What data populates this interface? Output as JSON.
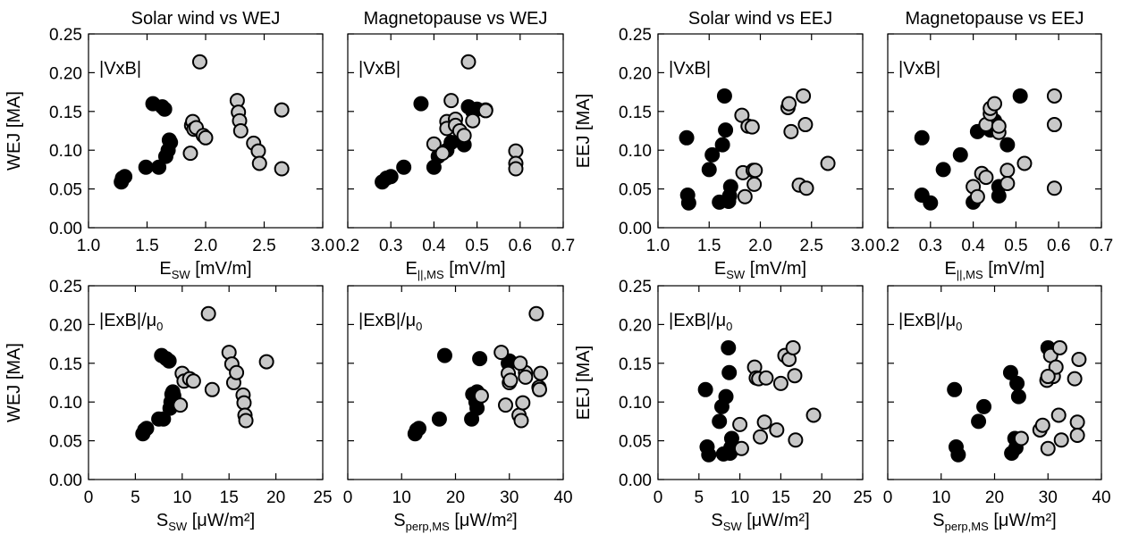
{
  "colors": {
    "solid": "#000000",
    "open": "#c8c8c8"
  },
  "axis_labels": {
    "wej": "WEJ [MA]",
    "eej": "EEJ [MA]",
    "esw": {
      "main": "E",
      "sub": "SW",
      "unit": " [mV/m]"
    },
    "epar": {
      "main": "E",
      "sub": "||,MS",
      "unit": " [mV/m]"
    },
    "ssw": {
      "main": "S",
      "sub": "SW",
      "unit": " [μW/m²]"
    },
    "sperp": {
      "main": "S",
      "sub": "perp,MS",
      "unit": " [μW/m²]"
    }
  },
  "chart_data": [
    {
      "id": "p1",
      "type": "scatter",
      "title": "Solar wind vs WEJ",
      "annotation": "|VxB|",
      "xlabel": "esw",
      "ylabel": "wej",
      "xlim": [
        1.0,
        3.0
      ],
      "ylim": [
        0,
        0.25
      ],
      "xticks": [
        "1.0",
        "1.5",
        "2.0",
        "2.5",
        "3.0"
      ],
      "yticks": [
        "0.00",
        "0.05",
        "0.10",
        "0.15",
        "0.20",
        "0.25"
      ],
      "series": [
        {
          "fill": "solid",
          "x": [
            1.28,
            1.29,
            1.31,
            1.49,
            1.55,
            1.6,
            1.63,
            1.65,
            1.66,
            1.68,
            1.69,
            1.7
          ],
          "y": [
            0.059,
            0.064,
            0.066,
            0.078,
            0.16,
            0.078,
            0.156,
            0.153,
            0.092,
            0.1,
            0.113,
            0.11
          ]
        },
        {
          "fill": "open",
          "x": [
            1.87,
            1.88,
            1.89,
            1.9,
            1.92,
            1.95,
            1.98,
            2.0,
            2.27,
            2.28,
            2.29,
            2.3,
            2.41,
            2.45,
            2.46,
            2.65
          ],
          "y": [
            0.096,
            0.132,
            0.137,
            0.127,
            0.129,
            0.214,
            0.119,
            0.116,
            0.164,
            0.149,
            0.138,
            0.125,
            0.109,
            0.099,
            0.083,
            0.076
          ]
        },
        {
          "fill": "open",
          "x": [
            2.65
          ],
          "y": [
            0.152
          ]
        }
      ]
    },
    {
      "id": "p2",
      "type": "scatter",
      "title": "Magnetopause vs WEJ",
      "annotation": "|VxB|",
      "xlabel": "epar",
      "ylabel": "",
      "xlim": [
        0.2,
        0.7
      ],
      "ylim": [
        0,
        0.25
      ],
      "xticks": [
        "0.2",
        "0.3",
        "0.4",
        "0.5",
        "0.6",
        "0.7"
      ],
      "yticks": [],
      "series": [
        {
          "fill": "solid",
          "x": [
            0.28,
            0.29,
            0.3,
            0.33,
            0.37,
            0.4,
            0.41,
            0.43,
            0.44,
            0.47,
            0.48,
            0.49,
            0.5
          ],
          "y": [
            0.059,
            0.064,
            0.066,
            0.078,
            0.16,
            0.078,
            0.092,
            0.1,
            0.11,
            0.107,
            0.156,
            0.15,
            0.153
          ]
        },
        {
          "fill": "open",
          "x": [
            0.4,
            0.42,
            0.43,
            0.43,
            0.44,
            0.45,
            0.45,
            0.46,
            0.47,
            0.48,
            0.49,
            0.52,
            0.52,
            0.59,
            0.59,
            0.59
          ],
          "y": [
            0.108,
            0.096,
            0.137,
            0.128,
            0.164,
            0.14,
            0.132,
            0.125,
            0.119,
            0.214,
            0.138,
            0.152,
            0.151,
            0.099,
            0.083,
            0.076
          ]
        }
      ]
    },
    {
      "id": "p3",
      "type": "scatter",
      "title": "Solar wind vs EEJ",
      "annotation": "|VxB|",
      "xlabel": "esw",
      "ylabel": "eej",
      "xlim": [
        1.0,
        3.0
      ],
      "ylim": [
        0,
        0.25
      ],
      "xticks": [
        "1.0",
        "1.5",
        "2.0",
        "2.5",
        "3.0"
      ],
      "yticks": [
        "0.00",
        "0.05",
        "0.10",
        "0.15",
        "0.20",
        "0.25"
      ],
      "series": [
        {
          "fill": "solid",
          "x": [
            1.28,
            1.29,
            1.3,
            1.5,
            1.53,
            1.6,
            1.63,
            1.65,
            1.66,
            1.69,
            1.7,
            1.71
          ],
          "y": [
            0.116,
            0.042,
            0.032,
            0.075,
            0.094,
            0.033,
            0.107,
            0.17,
            0.126,
            0.034,
            0.041,
            0.053
          ]
        },
        {
          "fill": "open",
          "x": [
            1.82,
            1.83,
            1.85,
            1.88,
            1.92,
            1.93,
            1.94,
            1.95,
            2.27,
            2.28,
            2.3,
            2.38,
            2.42,
            2.44,
            2.45,
            2.66
          ],
          "y": [
            0.145,
            0.071,
            0.04,
            0.131,
            0.13,
            0.074,
            0.056,
            0.074,
            0.155,
            0.16,
            0.124,
            0.055,
            0.17,
            0.133,
            0.051,
            0.083
          ]
        }
      ]
    },
    {
      "id": "p4",
      "type": "scatter",
      "title": "Magnetopause vs EEJ",
      "annotation": "|VxB|",
      "xlabel": "epar",
      "ylabel": "",
      "xlim": [
        0.2,
        0.7
      ],
      "ylim": [
        0,
        0.25
      ],
      "xticks": [
        "0.2",
        "0.3",
        "0.4",
        "0.5",
        "0.6",
        "0.7"
      ],
      "yticks": [],
      "series": [
        {
          "fill": "solid",
          "x": [
            0.28,
            0.28,
            0.3,
            0.33,
            0.37,
            0.4,
            0.41,
            0.44,
            0.45,
            0.46,
            0.46,
            0.48,
            0.51
          ],
          "y": [
            0.116,
            0.042,
            0.032,
            0.075,
            0.094,
            0.033,
            0.124,
            0.126,
            0.138,
            0.053,
            0.041,
            0.107,
            0.17
          ]
        },
        {
          "fill": "open",
          "x": [
            0.4,
            0.41,
            0.42,
            0.43,
            0.43,
            0.44,
            0.44,
            0.45,
            0.46,
            0.46,
            0.48,
            0.48,
            0.52,
            0.59,
            0.59,
            0.59
          ],
          "y": [
            0.053,
            0.04,
            0.07,
            0.133,
            0.065,
            0.147,
            0.154,
            0.16,
            0.123,
            0.131,
            0.074,
            0.057,
            0.083,
            0.17,
            0.133,
            0.051
          ]
        }
      ]
    },
    {
      "id": "p5",
      "type": "scatter",
      "title": "",
      "annotation": "|ExB|/μ0",
      "xlabel": "ssw",
      "ylabel": "wej",
      "xlim": [
        0,
        25
      ],
      "ylim": [
        0,
        0.25
      ],
      "xticks": [
        "0",
        "5",
        "10",
        "15",
        "20",
        "25"
      ],
      "yticks": [
        "0.00",
        "0.05",
        "0.10",
        "0.15",
        "0.20",
        "0.25"
      ],
      "series": [
        {
          "fill": "solid",
          "x": [
            5.8,
            6.0,
            6.2,
            7.5,
            7.8,
            8.0,
            8.3,
            8.6,
            8.7,
            8.8,
            8.9,
            9.0,
            9.1
          ],
          "y": [
            0.059,
            0.064,
            0.066,
            0.078,
            0.16,
            0.078,
            0.156,
            0.153,
            0.092,
            0.1,
            0.11,
            0.113,
            0.108
          ]
        },
        {
          "fill": "open",
          "x": [
            9.8,
            10.0,
            10.2,
            10.8,
            11.2,
            12.8,
            13.2,
            15.0,
            15.3,
            15.5,
            15.8,
            16.5,
            16.6,
            16.7,
            16.8,
            19.0
          ],
          "y": [
            0.096,
            0.137,
            0.127,
            0.13,
            0.127,
            0.214,
            0.116,
            0.164,
            0.149,
            0.125,
            0.138,
            0.109,
            0.099,
            0.083,
            0.076,
            0.152
          ]
        }
      ]
    },
    {
      "id": "p6",
      "type": "scatter",
      "title": "",
      "annotation": "|ExB|/μ0",
      "xlabel": "sperp",
      "ylabel": "",
      "xlim": [
        0,
        40
      ],
      "ylim": [
        0,
        0.25
      ],
      "xticks": [
        "0",
        "10",
        "20",
        "30",
        "40"
      ],
      "yticks": [],
      "series": [
        {
          "fill": "solid",
          "x": [
            12.5,
            12.8,
            13.2,
            17.0,
            18.0,
            23.0,
            23.2,
            23.8,
            24.0,
            24.0,
            24.5,
            29.8,
            30.0
          ],
          "y": [
            0.059,
            0.064,
            0.066,
            0.078,
            0.16,
            0.078,
            0.11,
            0.1,
            0.092,
            0.113,
            0.156,
            0.15,
            0.153
          ]
        },
        {
          "fill": "open",
          "x": [
            24.8,
            28.5,
            29.3,
            29.8,
            30.0,
            30.2,
            31.8,
            32.2,
            32.5,
            33.0,
            33.0,
            35.0,
            35.5,
            35.6,
            35.8,
            32.0
          ],
          "y": [
            0.108,
            0.164,
            0.096,
            0.137,
            0.125,
            0.128,
            0.083,
            0.076,
            0.099,
            0.138,
            0.132,
            0.214,
            0.119,
            0.116,
            0.137,
            0.15
          ]
        }
      ]
    },
    {
      "id": "p7",
      "type": "scatter",
      "title": "",
      "annotation": "|ExB|/μ0",
      "xlabel": "ssw",
      "ylabel": "eej",
      "xlim": [
        0,
        25
      ],
      "ylim": [
        0,
        0.25
      ],
      "xticks": [
        "0",
        "5",
        "10",
        "15",
        "20",
        "25"
      ],
      "yticks": [
        "0.00",
        "0.05",
        "0.10",
        "0.15",
        "0.20",
        "0.25"
      ],
      "series": [
        {
          "fill": "solid",
          "x": [
            5.8,
            6.0,
            6.2,
            7.5,
            7.8,
            8.0,
            8.3,
            8.6,
            8.7,
            8.8,
            8.9,
            9.0
          ],
          "y": [
            0.116,
            0.042,
            0.032,
            0.075,
            0.094,
            0.033,
            0.107,
            0.17,
            0.138,
            0.034,
            0.041,
            0.053
          ]
        },
        {
          "fill": "open",
          "x": [
            10.0,
            10.2,
            11.8,
            12.0,
            12.3,
            12.5,
            13.0,
            13.2,
            14.5,
            15.0,
            15.5,
            16.0,
            16.5,
            16.7,
            16.8,
            19.0
          ],
          "y": [
            0.071,
            0.04,
            0.145,
            0.131,
            0.13,
            0.055,
            0.074,
            0.131,
            0.064,
            0.124,
            0.16,
            0.155,
            0.17,
            0.134,
            0.051,
            0.083
          ]
        }
      ]
    },
    {
      "id": "p8",
      "type": "scatter",
      "title": "",
      "annotation": "|ExB|/μ0",
      "xlabel": "sperp",
      "ylabel": "",
      "xlim": [
        0,
        40
      ],
      "ylim": [
        0,
        0.25
      ],
      "xticks": [
        "0",
        "10",
        "20",
        "30",
        "40"
      ],
      "yticks": [],
      "series": [
        {
          "fill": "solid",
          "x": [
            12.5,
            12.8,
            13.2,
            17.0,
            18.0,
            23.0,
            23.2,
            23.8,
            24.0,
            24.2,
            24.5,
            30.0
          ],
          "y": [
            0.116,
            0.042,
            0.032,
            0.075,
            0.094,
            0.138,
            0.034,
            0.053,
            0.041,
            0.124,
            0.107,
            0.17
          ]
        },
        {
          "fill": "open",
          "x": [
            25.0,
            28.5,
            29.0,
            29.8,
            30.0,
            30.5,
            31.0,
            31.5,
            32.0,
            32.2,
            32.5,
            35.0,
            35.5,
            35.5,
            35.8,
            30.0
          ],
          "y": [
            0.053,
            0.064,
            0.07,
            0.128,
            0.04,
            0.16,
            0.133,
            0.145,
            0.083,
            0.17,
            0.051,
            0.13,
            0.074,
            0.057,
            0.155,
            0.133
          ]
        }
      ]
    }
  ]
}
